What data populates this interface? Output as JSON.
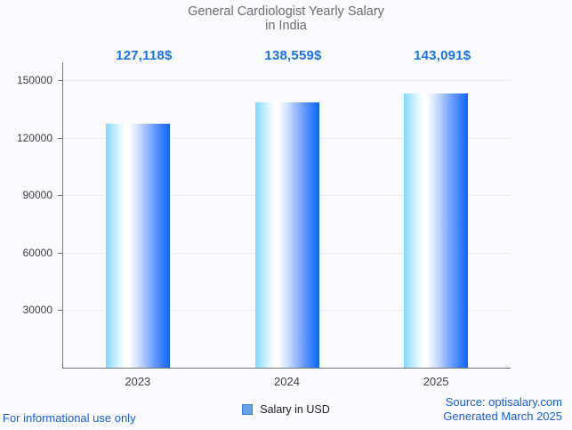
{
  "chart_data": {
    "type": "bar",
    "title": "General Cardiologist Yearly Salary in India",
    "title_lines": [
      "General Cardiologist Yearly Salary",
      "in India"
    ],
    "categories": [
      "2023",
      "2024",
      "2025"
    ],
    "series": [
      {
        "name": "Salary in USD",
        "values": [
          127118,
          138559,
          143091
        ]
      }
    ],
    "value_labels": [
      "127,118$",
      "138,559$",
      "143,091$"
    ],
    "y_ticks": [
      30000,
      60000,
      90000,
      120000,
      150000
    ],
    "ylim": [
      0,
      150000
    ],
    "xlabel": "",
    "ylabel": "",
    "grid": true,
    "legend_position": "bottom",
    "colors": {
      "accent_blue": "#1a73e8",
      "bar_gradient": [
        "#84d6fe",
        "#ffffff",
        "#0b64fd"
      ],
      "title_gray": "#6d6d6d",
      "axis_gray": "#757575",
      "gridline_gray": "#e8eaed",
      "legend_swatch_fill": "#68a1e5",
      "legend_swatch_border": "#3d7ad6"
    }
  },
  "footer": {
    "disclaimer": "For informational use only",
    "source": "Source: optisalary.com",
    "generated": "Generated March 2025"
  }
}
